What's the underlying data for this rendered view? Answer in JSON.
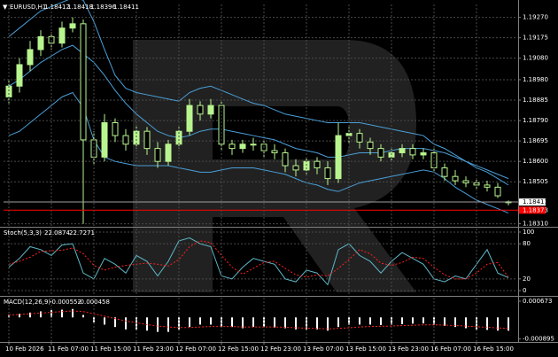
{
  "chart_data": [
    {
      "type": "candlestick",
      "title": "EURUSD,H1",
      "ylim": [
        1.183,
        1.1933
      ],
      "yticks": [
        {
          "value": 1.1927,
          "label": "1.19270"
        },
        {
          "value": 1.19175,
          "label": "1.19175"
        },
        {
          "value": 1.1908,
          "label": "1.19080"
        },
        {
          "value": 1.1898,
          "label": "1.18980"
        },
        {
          "value": 1.18885,
          "label": "1.18885"
        },
        {
          "value": 1.1879,
          "label": "1.18790"
        },
        {
          "value": 1.18695,
          "label": "1.18695"
        },
        {
          "value": 1.186,
          "label": "1.18600"
        },
        {
          "value": 1.18505,
          "label": "1.18505"
        },
        {
          "value": 1.1831,
          "label": "1.18310"
        }
      ],
      "grid": true,
      "up_color": "#b9f58f",
      "down_color": "#000000",
      "wick_color": "#b9f58f",
      "ohlc": {
        "open": [
          1.189,
          1.1895,
          1.1905,
          1.1912,
          1.1918,
          1.1915,
          1.1922,
          1.1924,
          1.187,
          1.1862,
          1.1878,
          1.1872,
          1.1868,
          1.1874,
          1.1866,
          1.186,
          1.1868,
          1.1874,
          1.1886,
          1.1882,
          1.1886,
          1.1868,
          1.1866,
          1.1868,
          1.1868,
          1.1865,
          1.1864,
          1.1858,
          1.1856,
          1.186,
          1.1857,
          1.1852,
          1.1872,
          1.1873,
          1.1869,
          1.1866,
          1.1862,
          1.1864,
          1.1866,
          1.1863,
          1.1864,
          1.1857,
          1.1853,
          1.1851,
          1.185,
          1.1849,
          1.1848,
          1.18412
        ],
        "high": [
          1.1898,
          1.1908,
          1.1916,
          1.1921,
          1.192,
          1.1925,
          1.1927,
          1.1926,
          1.1874,
          1.1882,
          1.188,
          1.1875,
          1.1877,
          1.1876,
          1.1869,
          1.187,
          1.1876,
          1.1889,
          1.1888,
          1.1889,
          1.1888,
          1.187,
          1.187,
          1.1871,
          1.187,
          1.1868,
          1.1866,
          1.1861,
          1.1862,
          1.1862,
          1.186,
          1.1878,
          1.1876,
          1.1875,
          1.1871,
          1.1868,
          1.1866,
          1.1868,
          1.1868,
          1.1866,
          1.1866,
          1.1859,
          1.1856,
          1.1853,
          1.1852,
          1.1851,
          1.185,
          1.18418
        ],
        "low": [
          1.1887,
          1.1892,
          1.1902,
          1.1909,
          1.1912,
          1.1913,
          1.192,
          1.1831,
          1.1858,
          1.186,
          1.1869,
          1.1865,
          1.1866,
          1.1863,
          1.1857,
          1.1858,
          1.1866,
          1.1872,
          1.1879,
          1.188,
          1.1865,
          1.1863,
          1.1864,
          1.1865,
          1.1862,
          1.1861,
          1.1855,
          1.1853,
          1.1854,
          1.1854,
          1.1849,
          1.185,
          1.1868,
          1.1866,
          1.1863,
          1.186,
          1.186,
          1.1862,
          1.1861,
          1.1861,
          1.1855,
          1.1851,
          1.1849,
          1.1848,
          1.1847,
          1.1846,
          1.1843,
          1.18396
        ],
        "close": [
          1.1895,
          1.1905,
          1.1912,
          1.1918,
          1.1915,
          1.1922,
          1.1924,
          1.187,
          1.1862,
          1.1878,
          1.1872,
          1.1868,
          1.1874,
          1.1866,
          1.186,
          1.1868,
          1.1874,
          1.1886,
          1.1882,
          1.1886,
          1.1868,
          1.1866,
          1.1868,
          1.1868,
          1.1865,
          1.1864,
          1.1858,
          1.1856,
          1.186,
          1.1857,
          1.1852,
          1.1872,
          1.1873,
          1.1869,
          1.1866,
          1.1862,
          1.1864,
          1.1866,
          1.1863,
          1.1864,
          1.1857,
          1.1853,
          1.1851,
          1.185,
          1.1849,
          1.1848,
          1.1844,
          1.18411
        ]
      },
      "bands": [
        {
          "color": "#4a9fd8",
          "values": [
            1.1918,
            1.1922,
            1.1926,
            1.193,
            1.1932,
            1.1934,
            1.1936,
            1.1935,
            1.1925,
            1.1912,
            1.19,
            1.1894,
            1.1892,
            1.1891,
            1.189,
            1.1889,
            1.1888,
            1.1892,
            1.1894,
            1.1895,
            1.1893,
            1.1891,
            1.1889,
            1.1887,
            1.1886,
            1.1884,
            1.1882,
            1.1881,
            1.188,
            1.1879,
            1.1878,
            1.1878,
            1.1878,
            1.1878,
            1.1877,
            1.1876,
            1.1875,
            1.1874,
            1.1873,
            1.1872,
            1.1868,
            1.1866,
            1.1863,
            1.186,
            1.1858,
            1.1856,
            1.1854,
            1.1852
          ]
        },
        {
          "color": "#4a9fd8",
          "values": [
            1.1895,
            1.1898,
            1.1902,
            1.1906,
            1.1909,
            1.1912,
            1.1914,
            1.191,
            1.1906,
            1.19,
            1.1893,
            1.1887,
            1.1882,
            1.1878,
            1.1874,
            1.1872,
            1.1871,
            1.1872,
            1.1874,
            1.1875,
            1.1875,
            1.1874,
            1.1873,
            1.1872,
            1.1871,
            1.187,
            1.1868,
            1.1866,
            1.1865,
            1.1864,
            1.1862,
            1.1862,
            1.1863,
            1.1864,
            1.1864,
            1.1864,
            1.1865,
            1.1866,
            1.1866,
            1.1866,
            1.1865,
            1.1864,
            1.1862,
            1.186,
            1.1857,
            1.1855,
            1.1852,
            1.1849
          ]
        },
        {
          "color": "#4a9fd8",
          "values": [
            1.1872,
            1.1874,
            1.1878,
            1.1882,
            1.1886,
            1.189,
            1.1892,
            1.1885,
            1.187,
            1.1862,
            1.186,
            1.1859,
            1.1858,
            1.1858,
            1.1858,
            1.1858,
            1.1857,
            1.1856,
            1.1855,
            1.1855,
            1.1856,
            1.1857,
            1.1857,
            1.1857,
            1.1856,
            1.1855,
            1.1854,
            1.1852,
            1.185,
            1.1849,
            1.1847,
            1.1846,
            1.1848,
            1.185,
            1.1851,
            1.1852,
            1.1853,
            1.1854,
            1.1855,
            1.1856,
            1.1855,
            1.1852,
            1.1848,
            1.1845,
            1.1842,
            1.184,
            1.1838,
            1.1836
          ]
        }
      ],
      "price_lines": [
        {
          "value": 1.18411,
          "color": "#ffffff"
        },
        {
          "value": 1.18373,
          "color": "#ff0000"
        }
      ]
    },
    {
      "type": "line",
      "title": "Stoch(5,3,3)",
      "ylim": [
        -6,
        106
      ],
      "yticks": [
        100,
        80,
        20,
        0
      ],
      "grid": true,
      "series": [
        {
          "color": "#5fb8c8",
          "dash": false,
          "values": [
            40,
            55,
            75,
            70,
            60,
            78,
            80,
            30,
            20,
            55,
            45,
            30,
            60,
            50,
            25,
            50,
            85,
            90,
            80,
            75,
            25,
            20,
            40,
            55,
            50,
            45,
            20,
            15,
            35,
            30,
            10,
            70,
            80,
            60,
            50,
            30,
            50,
            65,
            55,
            45,
            20,
            15,
            25,
            20,
            45,
            70,
            30,
            22.0874
          ]
        },
        {
          "color": "#ff2020",
          "dash": true,
          "values": [
            45,
            50,
            57,
            67,
            68,
            69,
            73,
            63,
            43,
            35,
            40,
            43,
            45,
            47,
            45,
            42,
            53,
            75,
            85,
            82,
            60,
            40,
            28,
            38,
            48,
            50,
            38,
            27,
            23,
            27,
            25,
            38,
            53,
            70,
            63,
            47,
            43,
            48,
            57,
            55,
            40,
            27,
            20,
            20,
            30,
            45,
            48,
            22.7271
          ]
        }
      ]
    },
    {
      "type": "macd",
      "title": "MACD(12,26,9)",
      "ylim": [
        -0.00102,
        0.00082
      ],
      "yticks": [
        0.000673,
        -0.000895
      ],
      "categories": [
        "10 Feb 2026",
        null,
        null,
        null,
        "11 Feb 07:00",
        null,
        null,
        null,
        "11 Feb 15:00",
        null,
        null,
        null,
        "11 Feb 23:00",
        null,
        null,
        null,
        "12 Feb 07:00",
        null,
        null,
        null,
        "12 Feb 15:00",
        null,
        null,
        null,
        "12 Feb 23:00",
        null,
        null,
        null,
        "13 Feb 07:00",
        null,
        null,
        null,
        "13 Feb 15:00",
        null,
        null,
        null,
        "13 Feb 23:00",
        null,
        null,
        null,
        "16 Feb 07:00",
        null,
        null,
        null,
        "16 Feb 15:00",
        null,
        null,
        null
      ],
      "series": [
        {
          "color": "#ffffff",
          "dash": false,
          "values": [
            0.0001,
            0.00015,
            0.0002,
            0.00025,
            0.0003,
            0.00032,
            0.00035,
            0.0001,
            -0.0002,
            -0.0003,
            -0.0004,
            -0.0005,
            -0.0005,
            -0.00055,
            -0.0006,
            -0.0006,
            -0.0005,
            -0.0004,
            -0.0003,
            -0.0003,
            -0.0004,
            -0.0004,
            -0.00045,
            -0.0004,
            -0.0004,
            -0.00042,
            -0.00045,
            -0.0005,
            -0.0005,
            -0.0005,
            -0.00055,
            -0.0004,
            -0.0003,
            -0.0003,
            -0.0003,
            -0.00032,
            -0.0003,
            -0.00028,
            -0.00026,
            -0.00025,
            -0.0003,
            -0.00035,
            -0.0004,
            -0.00045,
            -0.0005,
            -0.00052,
            -0.00055,
            -0.000552
          ]
        },
        {
          "color": "#ff2020",
          "dash": true,
          "values": [
            0.0001,
            0.00012,
            0.00015,
            0.00018,
            0.00021,
            0.00024,
            0.00027,
            0.00024,
            0.00015,
            5e-05,
            -5e-05,
            -0.00015,
            -0.00022,
            -0.0003,
            -0.00036,
            -0.0004,
            -0.00042,
            -0.00042,
            -0.0004,
            -0.00038,
            -0.00038,
            -0.00038,
            -0.0004,
            -0.0004,
            -0.0004,
            -0.0004,
            -0.00041,
            -0.00043,
            -0.00045,
            -0.00046,
            -0.00048,
            -0.00046,
            -0.00043,
            -0.0004,
            -0.00038,
            -0.00037,
            -0.00036,
            -0.00034,
            -0.00033,
            -0.00031,
            -0.00031,
            -0.00032,
            -0.00034,
            -0.00036,
            -0.00039,
            -0.00041,
            -0.00044,
            -0.000458
          ]
        }
      ]
    }
  ]
}
